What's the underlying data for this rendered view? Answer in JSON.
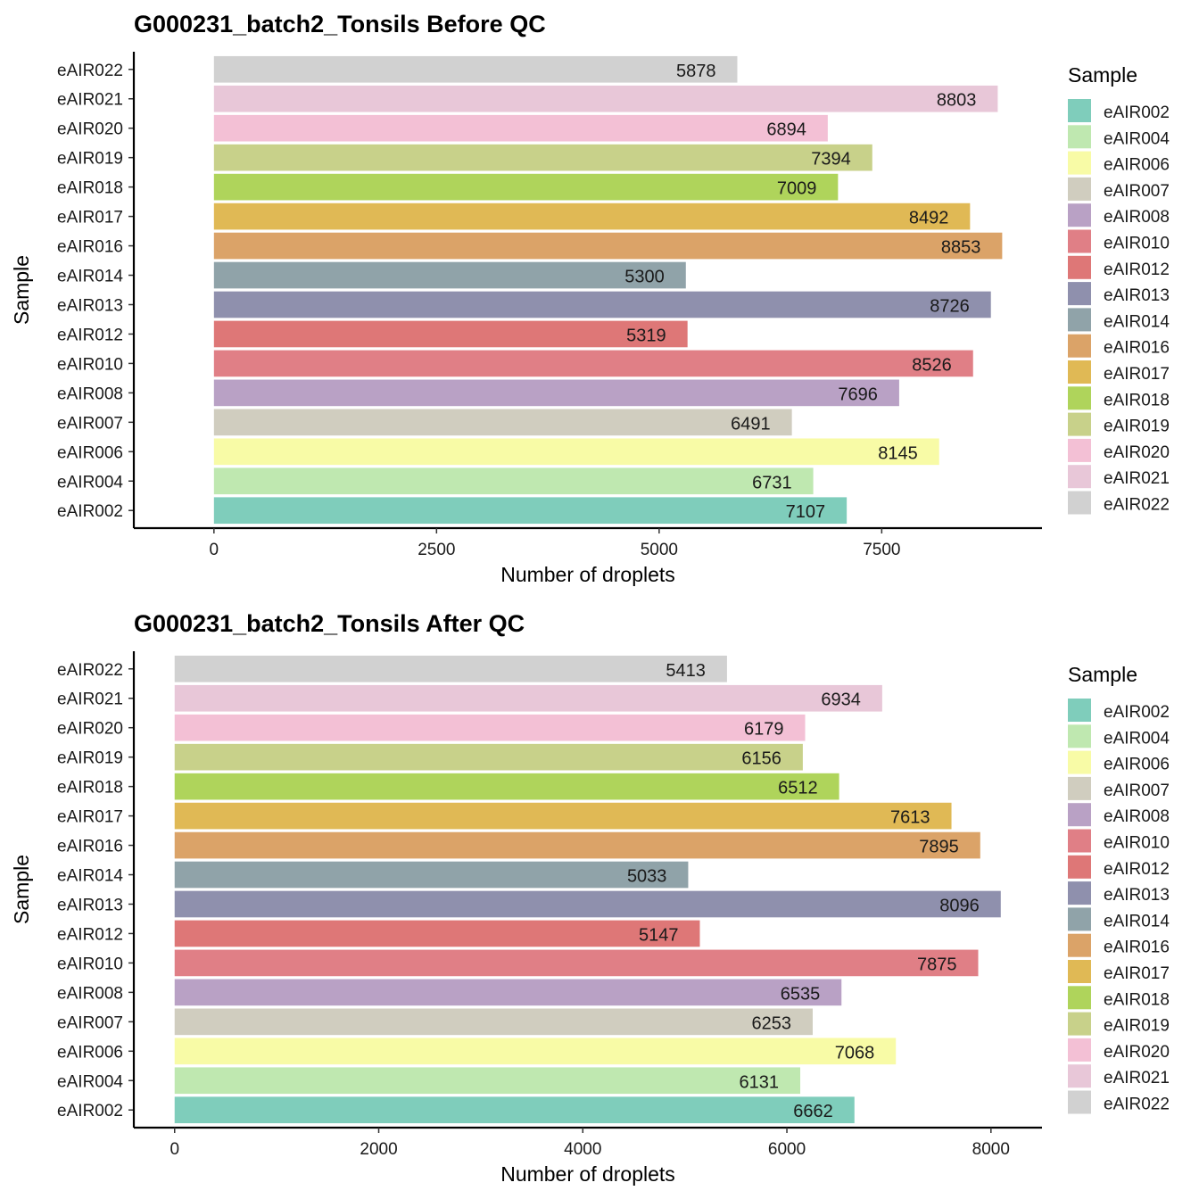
{
  "chart_data": [
    {
      "type": "bar",
      "orientation": "horizontal",
      "title": "G000231_batch2_Tonsils Before QC",
      "xlabel": "Number of droplets",
      "ylabel": "Sample",
      "xlim": [
        -900,
        9300
      ],
      "xticks": [
        0,
        2500,
        5000,
        7500
      ],
      "grid": false,
      "legend_title": "Sample",
      "legend_position": "right",
      "categories": [
        "eAIR002",
        "eAIR004",
        "eAIR006",
        "eAIR007",
        "eAIR008",
        "eAIR010",
        "eAIR012",
        "eAIR013",
        "eAIR014",
        "eAIR016",
        "eAIR017",
        "eAIR018",
        "eAIR019",
        "eAIR020",
        "eAIR021",
        "eAIR022"
      ],
      "values": [
        7107,
        6731,
        8145,
        6491,
        7696,
        8526,
        5319,
        8726,
        5300,
        8853,
        8492,
        7009,
        7394,
        6894,
        8803,
        5878
      ],
      "value_labels": [
        "7107",
        "6731",
        "8145",
        "6491",
        "7696",
        "8526",
        "5319",
        "8726",
        "5300",
        "8853",
        "8492",
        "7009",
        "7394",
        "6894",
        "8803",
        "5878"
      ]
    },
    {
      "type": "bar",
      "orientation": "horizontal",
      "title": "G000231_batch2_Tonsils After QC",
      "xlabel": "Number of droplets",
      "ylabel": "Sample",
      "xlim": [
        -400,
        8500
      ],
      "xticks": [
        0,
        2000,
        4000,
        6000,
        8000
      ],
      "grid": false,
      "legend_title": "Sample",
      "legend_position": "right",
      "categories": [
        "eAIR002",
        "eAIR004",
        "eAIR006",
        "eAIR007",
        "eAIR008",
        "eAIR010",
        "eAIR012",
        "eAIR013",
        "eAIR014",
        "eAIR016",
        "eAIR017",
        "eAIR018",
        "eAIR019",
        "eAIR020",
        "eAIR021",
        "eAIR022"
      ],
      "values": [
        6662,
        6131,
        7068,
        6253,
        6535,
        7875,
        5147,
        8096,
        5033,
        7895,
        7613,
        6512,
        6156,
        6179,
        6934,
        5413
      ],
      "value_labels": [
        "6662",
        "6131",
        "7068",
        "6253",
        "6535",
        "7875",
        "5147",
        "8096",
        "5033",
        "7895",
        "7613",
        "6512",
        "6156",
        "6179",
        "6934",
        "5413"
      ]
    }
  ],
  "colors": [
    "#7fcdbb",
    "#bfe8b0",
    "#f8fba6",
    "#d0cdbf",
    "#b9a1c5",
    "#e07f86",
    "#de7777",
    "#8f90ad",
    "#90a3a9",
    "#dba368",
    "#e0b955",
    "#afd45b",
    "#c8d18a",
    "#f3c0d5",
    "#e8c7d8",
    "#d1d1d1"
  ]
}
